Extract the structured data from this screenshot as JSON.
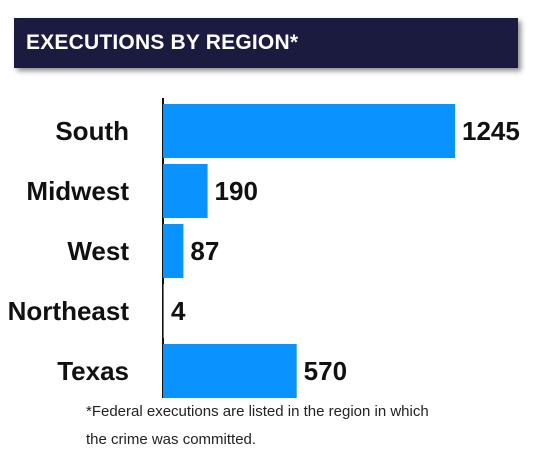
{
  "title": "EXECUTIONS BY REGION*",
  "footnote": "*Federal executions are listed in the region in which the crime was committed.",
  "colors": {
    "bar": "#0a93ff",
    "banner": "#1b1a3f",
    "text": "#111111"
  },
  "chart_data": {
    "type": "bar",
    "orientation": "horizontal",
    "categories": [
      "South",
      "Midwest",
      "West",
      "Northeast",
      "Texas"
    ],
    "values": [
      1245,
      190,
      87,
      4,
      570
    ],
    "title": "EXECUTIONS BY REGION*",
    "xlabel": "",
    "ylabel": "",
    "grid": false,
    "legend": "none"
  }
}
